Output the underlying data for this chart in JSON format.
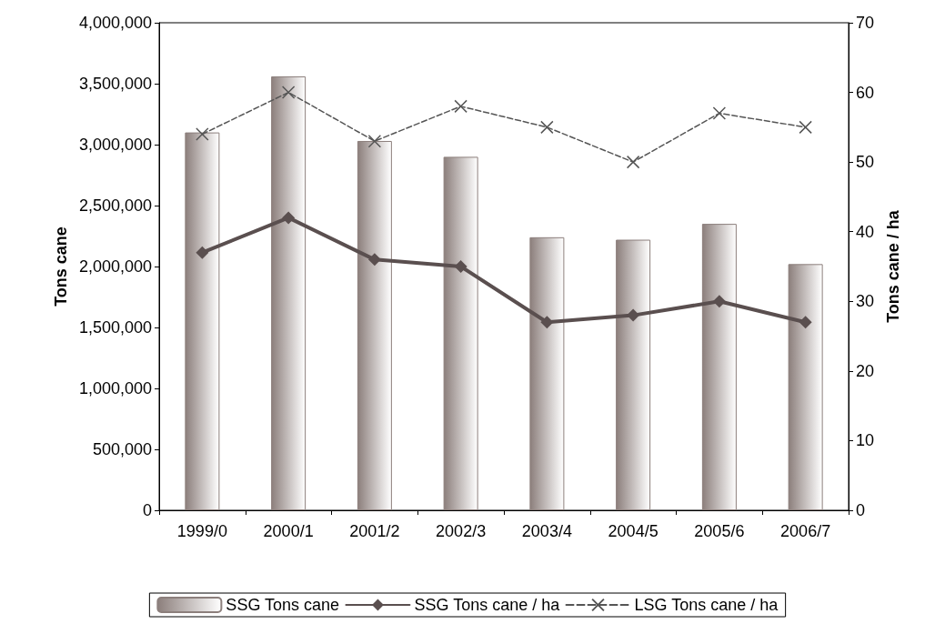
{
  "chart_data": {
    "type": "bar",
    "ylabel": "Tons cane",
    "y2label": "Tons cane / ha",
    "categories": [
      "1999/0",
      "2000/1",
      "2001/2",
      "2002/3",
      "2003/4",
      "2004/5",
      "2005/6",
      "2006/7"
    ],
    "series": [
      {
        "name": "SSG Tons cane",
        "color": "#8c7f7c",
        "values": [
          3100000,
          3560000,
          3030000,
          2900000,
          2240000,
          2220000,
          2350000,
          2020000
        ]
      },
      {
        "name": "SSG Tons cane / ha",
        "type": "line",
        "axis": "y2",
        "color": "#5a4f4f",
        "marker": "diamond",
        "line_style": "solid",
        "values": [
          37,
          42,
          36,
          35,
          27,
          28,
          30,
          27
        ]
      },
      {
        "name": "LSG Tons cane / ha",
        "type": "line",
        "axis": "y2",
        "color": "#555555",
        "marker": "cross",
        "line_style": "dashed",
        "values": [
          54,
          60,
          53,
          58,
          55,
          50,
          57,
          55
        ]
      }
    ],
    "ylim": [
      0,
      4000000
    ],
    "yticks": [
      0,
      {
        "value": 500000,
        "label": "500,000"
      },
      {
        "value": 1000000,
        "label": "1,000,000"
      },
      {
        "value": 1500000,
        "label": "1,500,000"
      },
      {
        "value": 2000000,
        "label": "2,000,000"
      },
      {
        "value": 2500000,
        "label": "2,500,000"
      },
      {
        "value": 3000000,
        "label": "3,000,000"
      },
      {
        "value": 3500000,
        "label": "3,500,000"
      },
      {
        "value": 4000000,
        "label": "4,000,000"
      }
    ],
    "y2lim": [
      0,
      70
    ],
    "y2ticks": [
      0,
      10,
      20,
      30,
      40,
      50,
      60,
      70
    ],
    "grid": false,
    "legend": "bottom"
  }
}
